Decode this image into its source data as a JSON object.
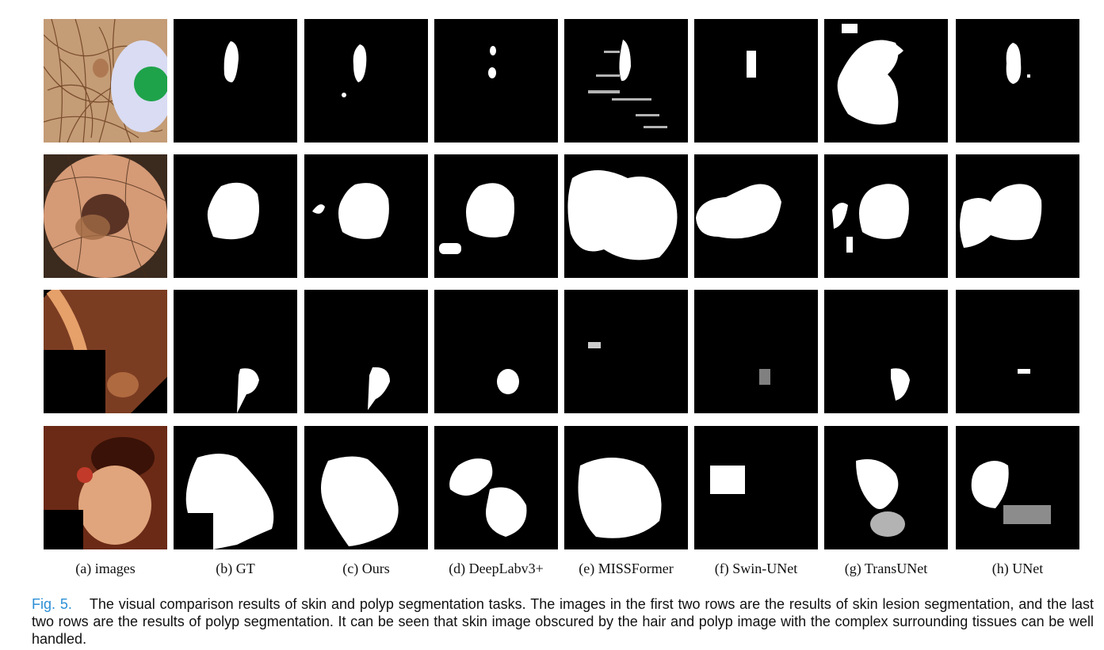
{
  "columns": [
    {
      "label": "(a)  images"
    },
    {
      "label": "(b)  GT"
    },
    {
      "label": "(c)  Ours"
    },
    {
      "label": "(d)  DeepLabv3+"
    },
    {
      "label": "(e)  MISSFormer"
    },
    {
      "label": "(f)  Swin-UNet"
    },
    {
      "label": "(g)  TransUNet"
    },
    {
      "label": "(h)  UNet"
    }
  ],
  "caption": {
    "label": "Fig. 5.",
    "text": "The visual comparison results of skin and polyp segmentation tasks. The images in the first two rows are the results of skin lesion segmentation, and the last two rows are the results of polyp segmentation. It can be seen that skin image obscured by the hair and polyp image with the complex surrounding tissues can be well handled."
  }
}
